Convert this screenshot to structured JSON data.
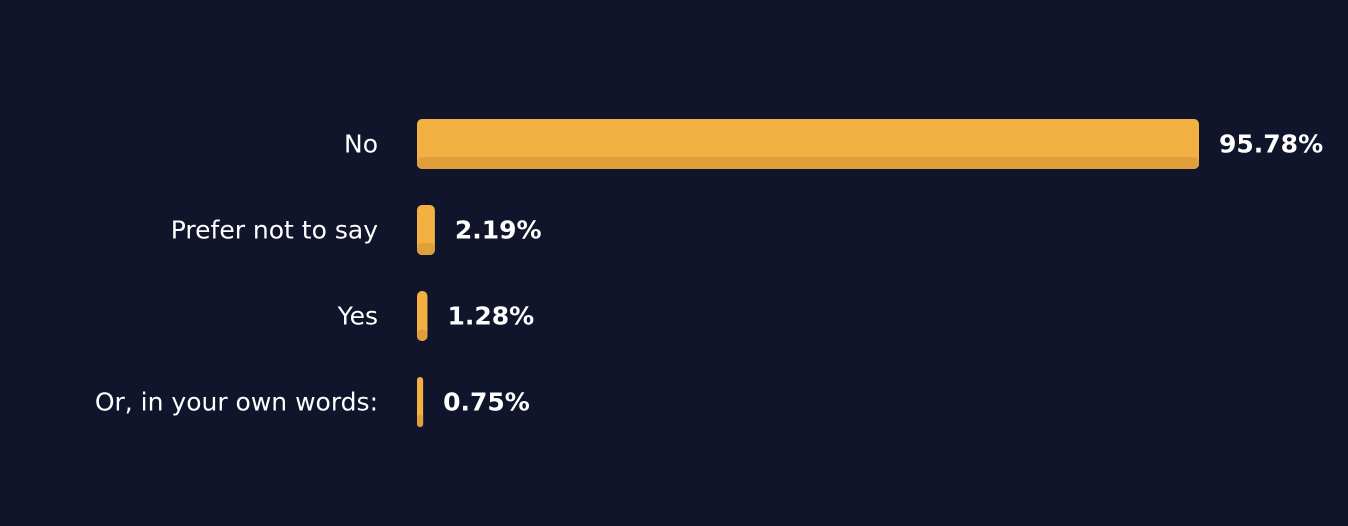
{
  "chart_data": {
    "type": "bar",
    "orientation": "horizontal",
    "categories": [
      "No",
      "Prefer not to say",
      "Yes",
      "Or, in your own words:"
    ],
    "values": [
      95.78,
      2.19,
      1.28,
      0.75
    ],
    "value_labels": [
      "95.78%",
      "2.19%",
      "1.28%",
      "0.75%"
    ],
    "unit": "%",
    "title": "",
    "xlabel": "",
    "ylabel": "",
    "xlim": [
      0,
      95.78
    ],
    "grid": false,
    "legend": "none",
    "colors": {
      "background": "#10152b",
      "bar": "#f3b143",
      "bar_shade": "#dfa03c",
      "text": "#ffffff"
    }
  }
}
